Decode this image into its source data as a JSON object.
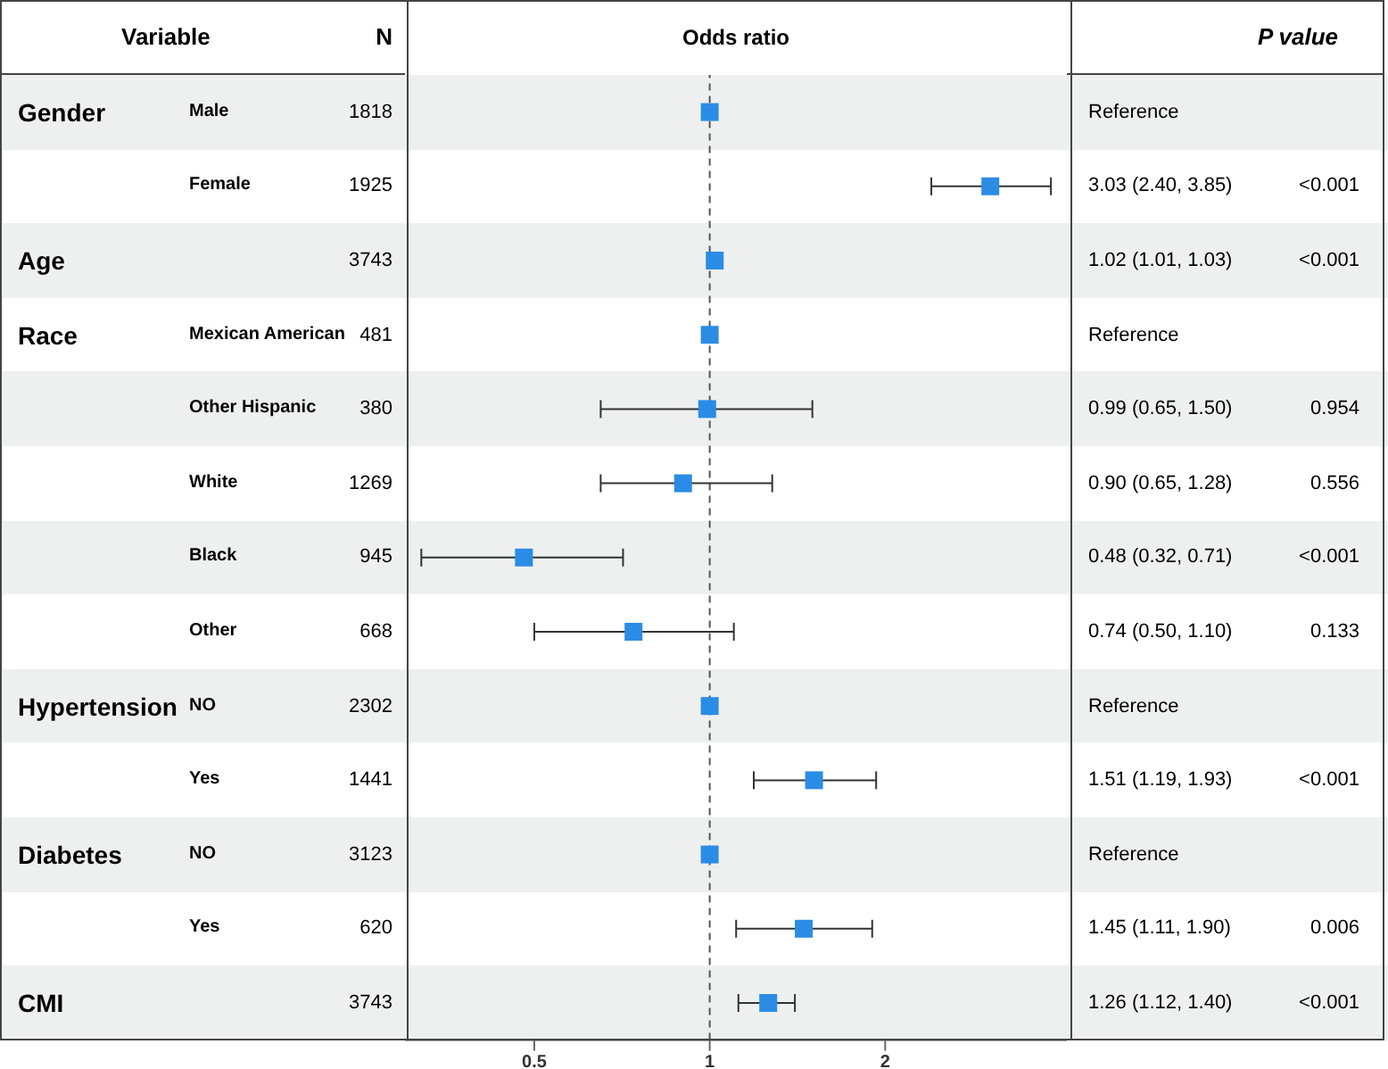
{
  "chart_data": {
    "type": "scatter",
    "orientation": "horizontal",
    "xlabel": "Odds ratio",
    "categories": [
      "Male",
      "Female",
      null,
      "Mexican American",
      "Other Hispanic",
      "White",
      "Black",
      "Other",
      "NO",
      "Yes",
      "NO",
      "Yes",
      null
    ],
    "values": [
      1,
      3.03,
      1.02,
      1,
      0.99,
      0.9,
      0.48,
      0.74,
      1,
      1.51,
      1,
      1.45,
      1.26
    ],
    "errors": [
      null,
      [
        2.4,
        3.85
      ],
      [
        1.01,
        1.03
      ],
      null,
      [
        0.65,
        1.5
      ],
      [
        0.65,
        1.28
      ],
      [
        0.32,
        0.71
      ],
      [
        0.5,
        1.1
      ],
      null,
      [
        1.19,
        1.93
      ],
      null,
      [
        1.11,
        1.9
      ],
      [
        1.12,
        1.4
      ]
    ],
    "color": "#2b8ce6",
    "marker": "square",
    "log": "x",
    "xlim": [
      0.3,
      4.1
    ],
    "xticks": [
      0.5,
      1,
      2
    ],
    "grid": false,
    "legend": false,
    "ref_lines": [
      {
        "axis": "x",
        "value": 1,
        "line_style": "dashed",
        "color": "#555555"
      }
    ],
    "annotations": [
      "Variable",
      "N",
      "P value",
      "Gender",
      "1818",
      "Reference",
      "1925",
      "3.03 (2.40, 3.85)",
      "<0.001",
      "Age",
      "3743",
      "1.02 (1.01, 1.03)",
      "<0.001",
      "Race",
      "481",
      "Reference",
      "380",
      "0.99 (0.65, 1.50)",
      "0.954",
      "1269",
      "0.90 (0.65, 1.28)",
      "0.556",
      "945",
      "0.48 (0.32, 0.71)",
      "<0.001",
      "668",
      "0.74 (0.50, 1.10)",
      "0.133",
      "Hypertension",
      "2302",
      "Reference",
      "1441",
      "1.51 (1.19, 1.93)",
      "<0.001",
      "Diabetes",
      "3123",
      "Reference",
      "620",
      "1.45 (1.11, 1.90)",
      "0.006",
      "CMI",
      "3743",
      "1.26 (1.12, 1.40)",
      "<0.001"
    ]
  }
}
